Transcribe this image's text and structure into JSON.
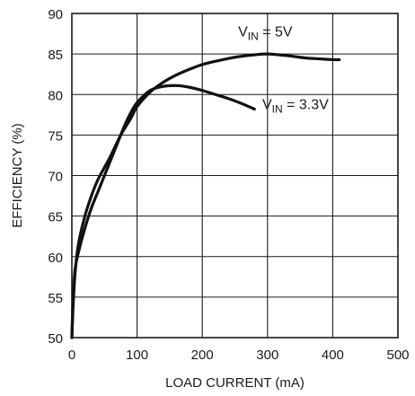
{
  "chart_data": {
    "type": "line",
    "title": "",
    "xlabel": "LOAD CURRENT (mA)",
    "ylabel": "EFFICIENCY (%)",
    "xlim": [
      0,
      500
    ],
    "ylim": [
      50,
      90
    ],
    "xticks": [
      0,
      100,
      200,
      300,
      400,
      500
    ],
    "yticks": [
      50,
      55,
      60,
      65,
      70,
      75,
      80,
      85,
      90
    ],
    "grid": true,
    "series": [
      {
        "name": "VIN = 5V",
        "label_main": "V",
        "label_sub": "IN",
        "label_rest": " = 5V",
        "x": [
          0,
          2,
          5,
          10,
          20,
          30,
          40,
          50,
          60,
          75,
          90,
          100,
          120,
          140,
          160,
          180,
          200,
          220,
          250,
          280,
          300,
          330,
          360,
          380,
          400,
          410
        ],
        "y": [
          50,
          54,
          58,
          61.5,
          65,
          67.5,
          69.5,
          71,
          72.5,
          75,
          77,
          78.5,
          80.3,
          81.5,
          82.4,
          83.1,
          83.7,
          84.1,
          84.6,
          84.9,
          85,
          84.8,
          84.5,
          84.4,
          84.3,
          84.3
        ]
      },
      {
        "name": "VIN = 3.3V",
        "label_main": "V",
        "label_sub": "IN",
        "label_rest": " = 3.3V",
        "x": [
          0,
          2,
          5,
          10,
          20,
          30,
          40,
          50,
          60,
          70,
          80,
          90,
          100,
          120,
          140,
          160,
          180,
          200,
          220,
          240,
          260,
          280
        ],
        "y": [
          50,
          55,
          58.5,
          60.5,
          63.5,
          66,
          68,
          70,
          72,
          74,
          76,
          77.7,
          79,
          80.5,
          81,
          81.1,
          80.9,
          80.5,
          80,
          79.5,
          78.9,
          78.2
        ]
      }
    ]
  }
}
